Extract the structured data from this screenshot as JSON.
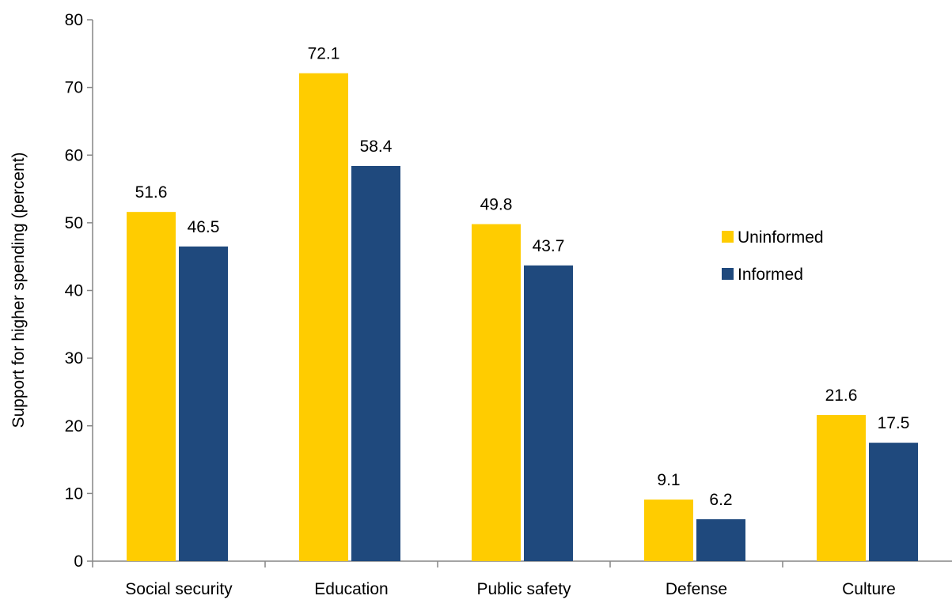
{
  "chart_data": {
    "type": "bar",
    "categories": [
      "Social security",
      "Education",
      "Public safety",
      "Defense",
      "Culture"
    ],
    "series": [
      {
        "name": "Uninformed",
        "color": "#FFCC00",
        "values": [
          51.6,
          72.1,
          49.8,
          9.1,
          21.6
        ]
      },
      {
        "name": "Informed",
        "color": "#1F497D",
        "values": [
          46.5,
          58.4,
          43.7,
          6.2,
          17.5
        ]
      }
    ],
    "title": "",
    "xlabel": "",
    "ylabel": "Support for higher spending (percent)",
    "ylim": [
      0,
      80
    ],
    "yticks": [
      0,
      10,
      20,
      30,
      40,
      50,
      60,
      70,
      80
    ],
    "grid": false,
    "legend_position": "right",
    "data_labels": true
  }
}
